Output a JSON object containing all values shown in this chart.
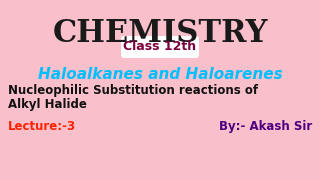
{
  "bg_color": "#f9c0cb",
  "title": "CHEMISTRY",
  "title_color": "#1a1a1a",
  "title_fontsize": 22,
  "badge_text": "Class 12th",
  "badge_text_color": "#7b003c",
  "badge_bg": "#ffffff",
  "badge_fontsize": 9,
  "sub_title": "Haloalkanes and Haloarenes",
  "sub_title_color": "#00bfff",
  "sub_title_fontsize": 11,
  "body_line1": "Nucleophilic Substitution reactions of",
  "body_line2": "Alkyl Halide",
  "body_color": "#111111",
  "body_fontsize": 8.5,
  "lecture_text": "Lecture:-3",
  "lecture_color": "#ff2200",
  "lecture_fontsize": 8.5,
  "author_text": "By:- Akash Sir",
  "author_color": "#4b0082",
  "author_fontsize": 8.5
}
